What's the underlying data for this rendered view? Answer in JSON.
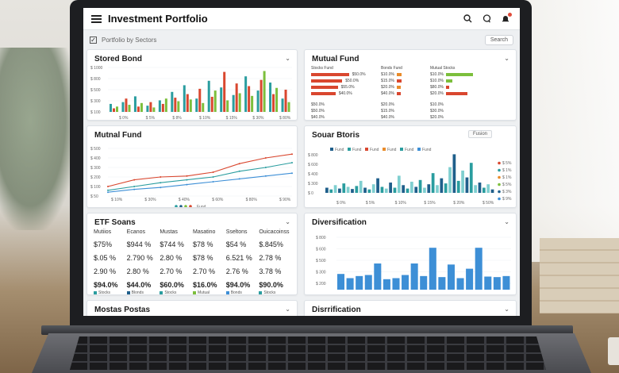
{
  "app": {
    "title": "Investment Portfolio",
    "subtitle": "Portfolio by Sectors",
    "search_label": "Search",
    "checkbox_glyph": "✓"
  },
  "colors": {
    "teal": "#2a9d9f",
    "red": "#d9472f",
    "orange": "#e98b2a",
    "green": "#7cbf3c",
    "blue": "#3d8fd6",
    "navy": "#1f5f8b"
  },
  "cards": {
    "stored_bond": {
      "title": "Stored Bond"
    },
    "mutual_fund_top": {
      "title": "Mutual Fund"
    },
    "mutual_fund_line": {
      "title": "Mutnal Fund",
      "legend": "Fund"
    },
    "sector_stocks": {
      "title": "Souar Btoris",
      "button": "Fusion"
    },
    "etf_stocks": {
      "title": "ETF Soans"
    },
    "diversification": {
      "title": "Diversification"
    },
    "bottom_left": {
      "title": "Mostas Postas"
    },
    "bottom_right": {
      "title": "Disrrification"
    }
  },
  "stored_bond_chart": {
    "type": "bar",
    "y_ticks": [
      "$ 1000",
      "$ 800",
      "$ 500",
      "$ 300",
      "$ 100"
    ],
    "x_ticks": [
      "$ 0%",
      "$ 5%",
      "$ 8%",
      "$ 10%",
      "$ 15%",
      "$ 30%",
      "$ 80%"
    ],
    "groups": [
      [
        18,
        8,
        12
      ],
      [
        22,
        30,
        16
      ],
      [
        35,
        12,
        20
      ],
      [
        14,
        22,
        10
      ],
      [
        26,
        18,
        30
      ],
      [
        45,
        32,
        24
      ],
      [
        60,
        40,
        28
      ],
      [
        30,
        52,
        20
      ],
      [
        70,
        34,
        48
      ],
      [
        55,
        90,
        26
      ],
      [
        38,
        64,
        42
      ],
      [
        80,
        58,
        36
      ],
      [
        48,
        72,
        92
      ],
      [
        66,
        40,
        54
      ],
      [
        30,
        50,
        22
      ]
    ],
    "series_colors": [
      "teal",
      "red",
      "green"
    ]
  },
  "mutual_fund_table": {
    "headers": [
      "Stocks Fund",
      "Bonds Fund",
      "Mutual Stocks"
    ],
    "rows": [
      {
        "v1": "$50.0%",
        "v2": "$10.0%",
        "v3": "$10.0%",
        "bars": [
          0.85,
          0.4,
          0.9
        ],
        "colors": [
          "red",
          "orange",
          "green"
        ]
      },
      {
        "v1": "$50.0%",
        "v2": "$15.0%",
        "v3": "$10.0%",
        "bars": [
          0.7,
          0.35,
          0.2
        ],
        "colors": [
          "red",
          "red",
          "green"
        ]
      },
      {
        "v1": "$55.0%",
        "v2": "$20.0%",
        "v3": "$80.0%",
        "bars": [
          0.6,
          0.3,
          0.1
        ],
        "colors": [
          "red",
          "orange",
          "red"
        ]
      },
      {
        "v1": "$40.0%",
        "v2": "$40.0%",
        "v3": "$20.0%",
        "bars": [
          0.55,
          0.3,
          0.7
        ],
        "colors": [
          "red",
          "red",
          "red"
        ]
      }
    ],
    "rows2": [
      {
        "v1": "$50.0%",
        "v2": "$20.0%",
        "v3": "$10.0%"
      },
      {
        "v1": "$50.0%",
        "v2": "$15.0%",
        "v3": "$30.0%"
      },
      {
        "v1": "$40.0%",
        "v2": "$40.0%",
        "v3": "$20.0%"
      }
    ]
  },
  "mutual_fund_line_chart": {
    "type": "line",
    "y_ticks": [
      "$ 500",
      "$ 400",
      "$ 300",
      "$ 200",
      "$ 100",
      "$ 50"
    ],
    "x_ticks": [
      "$ 10%",
      "$ 30%",
      "$ 40%",
      "$ 60%",
      "$ 80%",
      "$ 90%"
    ],
    "series": [
      {
        "color": "red",
        "values": [
          20,
          34,
          40,
          42,
          50,
          68,
          80,
          88
        ]
      },
      {
        "color": "teal",
        "values": [
          12,
          20,
          28,
          34,
          40,
          52,
          60,
          70
        ]
      },
      {
        "color": "blue",
        "values": [
          8,
          14,
          18,
          24,
          30,
          36,
          42,
          48
        ]
      }
    ]
  },
  "sector_stocks_chart": {
    "type": "bar",
    "legend": [
      "Fund",
      "Fund",
      "Fund",
      "Fund",
      "Fund",
      "Fund"
    ],
    "legend_colors": [
      "navy",
      "teal",
      "red",
      "orange",
      "teal",
      "blue"
    ],
    "y_ticks": [
      "$ 800",
      "$ 600",
      "$ 400",
      "$ 300",
      "$ 0"
    ],
    "x_ticks": [
      "$ 0%",
      "$ 5%",
      "$ 10%",
      "$ 15%",
      "$ 20%",
      "$ 50%"
    ],
    "right_legend": [
      "$ 5%",
      "$ 1%",
      "$ 1%",
      "$ 5%",
      "$ 3%",
      "$ 9%"
    ],
    "right_legend_colors": [
      "red",
      "teal",
      "orange",
      "green",
      "navy",
      "blue"
    ],
    "values": [
      12,
      8,
      18,
      10,
      22,
      14,
      9,
      16,
      28,
      12,
      8,
      20,
      34,
      14,
      10,
      24,
      12,
      40,
      18,
      10,
      26,
      14,
      30,
      12,
      20,
      46,
      18,
      34,
      22,
      60,
      90,
      28,
      52,
      36,
      70,
      18,
      24,
      12,
      20,
      8
    ]
  },
  "etf_table": {
    "headers": [
      "Mutiios",
      "Ecanos",
      "Mustas",
      "Masatino",
      "Sseltons",
      "Ouicacoinss"
    ],
    "rows": [
      [
        "$75%",
        "$944 %",
        "$744 %",
        "$78 %",
        "$54 %",
        "$.845%"
      ],
      [
        "$.05 %",
        "2.790 %",
        "2.80 %",
        "$78 %",
        "6.521 %",
        "2.78 %"
      ],
      [
        "2.90 %",
        "2.80 %",
        "2.70 %",
        "2.70 %",
        "2.76 %",
        "3.78 %"
      ]
    ],
    "totals": [
      "$94.0%",
      "$44.0%",
      "$60.0%",
      "$16.0%",
      "$94.0%",
      "$90.0%"
    ],
    "footnotes": [
      "Stocks",
      "Blonds",
      "Stocks",
      "Mutual",
      "Bonds",
      "Stocks"
    ],
    "foot_colors": [
      "teal",
      "navy",
      "teal",
      "green",
      "blue",
      "teal"
    ]
  },
  "diversification_chart": {
    "type": "bar",
    "y_ticks": [
      "$ 800",
      "$ 600",
      "$ 500",
      "$ 300",
      "$ 200"
    ],
    "values": [
      30,
      22,
      26,
      28,
      50,
      20,
      22,
      28,
      50,
      26,
      80,
      24,
      48,
      22,
      40,
      80,
      25,
      24,
      26
    ]
  }
}
